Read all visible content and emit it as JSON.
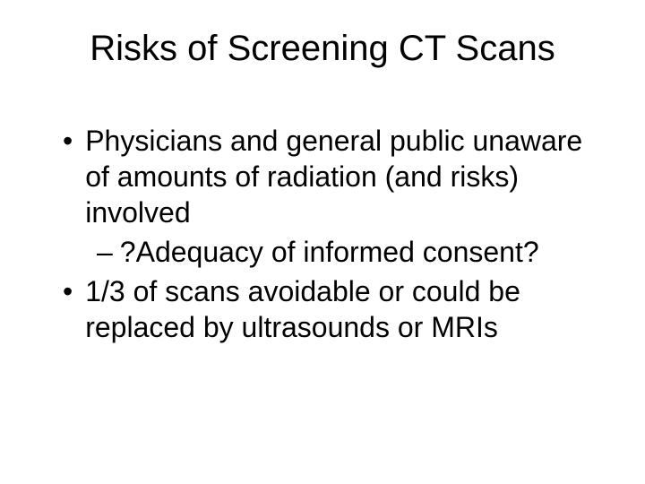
{
  "slide": {
    "title": "Risks of Screening CT Scans",
    "bullets": [
      {
        "text": "Physicians and general public unaware of amounts of radiation (and risks) involved",
        "marker": "•",
        "sub_bullets": [
          {
            "text": "?Adequacy of informed consent?",
            "marker": "–"
          }
        ]
      },
      {
        "text": "1/3 of scans avoidable or could be replaced by ultrasounds or MRIs",
        "marker": "•",
        "sub_bullets": []
      }
    ]
  },
  "styling": {
    "background_color": "#ffffff",
    "text_color": "#000000",
    "title_fontsize": 40,
    "body_fontsize": 32,
    "font_family": "Arial",
    "slide_width": 720,
    "slide_height": 540
  }
}
